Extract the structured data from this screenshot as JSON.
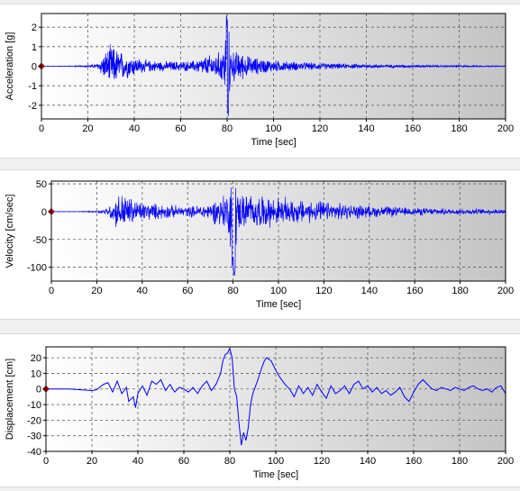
{
  "colors": {
    "signal": "#0000ff",
    "marker": "#cc0000",
    "plot_bg_left": "#ffffff",
    "plot_bg_right": "#c4c4c4",
    "grid": "#606060"
  },
  "chart_data": [
    {
      "type": "line",
      "title": "",
      "xlabel": "Time [sec]",
      "ylabel": "Acceleration [g]",
      "xlim": [
        0,
        200
      ],
      "ylim": [
        -2.7,
        2.7
      ],
      "xticks": [
        0,
        20,
        40,
        60,
        80,
        100,
        120,
        140,
        160,
        180,
        200
      ],
      "yticks": [
        -2,
        -1,
        0,
        1,
        2
      ],
      "grid": true,
      "marker": {
        "x": 0,
        "y": 0
      },
      "envelope": [
        {
          "x": 0,
          "a": 0
        },
        {
          "x": 10,
          "a": 0.01
        },
        {
          "x": 18,
          "a": 0.04
        },
        {
          "x": 24,
          "a": 0.15
        },
        {
          "x": 26,
          "a": 0.55
        },
        {
          "x": 28,
          "a": 0.9
        },
        {
          "x": 30,
          "a": 1.25
        },
        {
          "x": 33,
          "a": 0.95
        },
        {
          "x": 36,
          "a": 0.75
        },
        {
          "x": 40,
          "a": 0.55
        },
        {
          "x": 45,
          "a": 0.35
        },
        {
          "x": 50,
          "a": 0.3
        },
        {
          "x": 60,
          "a": 0.28
        },
        {
          "x": 65,
          "a": 0.3
        },
        {
          "x": 70,
          "a": 0.55
        },
        {
          "x": 75,
          "a": 0.75
        },
        {
          "x": 78,
          "a": 0.9
        },
        {
          "x": 80,
          "a": 2.7
        },
        {
          "x": 82,
          "a": 0.95
        },
        {
          "x": 86,
          "a": 0.8
        },
        {
          "x": 90,
          "a": 0.55
        },
        {
          "x": 100,
          "a": 0.35
        },
        {
          "x": 110,
          "a": 0.25
        },
        {
          "x": 130,
          "a": 0.15
        },
        {
          "x": 150,
          "a": 0.1
        },
        {
          "x": 170,
          "a": 0.06
        },
        {
          "x": 200,
          "a": 0.03
        }
      ]
    },
    {
      "type": "line",
      "title": "",
      "xlabel": "Time [sec]",
      "ylabel": "Velocity [cm/sec]",
      "xlim": [
        0,
        200
      ],
      "ylim": [
        -125,
        55
      ],
      "xticks": [
        0,
        20,
        40,
        60,
        80,
        100,
        120,
        140,
        160,
        180,
        200
      ],
      "yticks": [
        -100,
        -50,
        0,
        50
      ],
      "grid": true,
      "marker": {
        "x": 0,
        "y": 0
      },
      "envelope": [
        {
          "x": 0,
          "a": 0
        },
        {
          "x": 12,
          "a": 0.5
        },
        {
          "x": 20,
          "a": 2
        },
        {
          "x": 25,
          "a": 8
        },
        {
          "x": 28,
          "a": 30
        },
        {
          "x": 31,
          "a": 40
        },
        {
          "x": 35,
          "a": 30
        },
        {
          "x": 40,
          "a": 20
        },
        {
          "x": 50,
          "a": 15
        },
        {
          "x": 60,
          "a": 10
        },
        {
          "x": 70,
          "a": 18
        },
        {
          "x": 75,
          "a": 35
        },
        {
          "x": 78,
          "a": 45
        },
        {
          "x": 80,
          "a": 120
        },
        {
          "x": 82,
          "a": 40
        },
        {
          "x": 88,
          "a": 35
        },
        {
          "x": 100,
          "a": 28
        },
        {
          "x": 110,
          "a": 25
        },
        {
          "x": 120,
          "a": 20
        },
        {
          "x": 140,
          "a": 12
        },
        {
          "x": 160,
          "a": 8
        },
        {
          "x": 180,
          "a": 6
        },
        {
          "x": 200,
          "a": 5
        }
      ]
    },
    {
      "type": "line",
      "title": "",
      "xlabel": "Time [sec]",
      "ylabel": "Displacement [cm]",
      "xlim": [
        0,
        200
      ],
      "ylim": [
        -40,
        27
      ],
      "xticks": [
        0,
        20,
        40,
        60,
        80,
        100,
        120,
        140,
        160,
        180,
        200
      ],
      "yticks": [
        -40,
        -30,
        -20,
        -10,
        0,
        10,
        20
      ],
      "grid": true,
      "marker": {
        "x": 0,
        "y": 0
      },
      "points": [
        [
          0,
          0
        ],
        [
          10,
          0
        ],
        [
          15,
          -0.5
        ],
        [
          20,
          -1
        ],
        [
          22,
          -0.5
        ],
        [
          25,
          3
        ],
        [
          27,
          4
        ],
        [
          29,
          -2
        ],
        [
          31,
          5
        ],
        [
          33,
          -3
        ],
        [
          35,
          1
        ],
        [
          36,
          -8
        ],
        [
          38,
          -5
        ],
        [
          39,
          -12
        ],
        [
          40,
          -3
        ],
        [
          42,
          2
        ],
        [
          44,
          -4
        ],
        [
          46,
          5
        ],
        [
          48,
          3
        ],
        [
          50,
          6
        ],
        [
          52,
          -1
        ],
        [
          54,
          3
        ],
        [
          56,
          -2
        ],
        [
          58,
          1
        ],
        [
          60,
          0
        ],
        [
          62,
          -2
        ],
        [
          64,
          1
        ],
        [
          66,
          -3
        ],
        [
          68,
          2
        ],
        [
          70,
          5
        ],
        [
          72,
          -1
        ],
        [
          74,
          3
        ],
        [
          76,
          10
        ],
        [
          77,
          18
        ],
        [
          78,
          22
        ],
        [
          79,
          23
        ],
        [
          80,
          26
        ],
        [
          81,
          20
        ],
        [
          82,
          0
        ],
        [
          83,
          -5
        ],
        [
          84,
          -22
        ],
        [
          85,
          -36
        ],
        [
          86,
          -28
        ],
        [
          87,
          -33
        ],
        [
          88,
          -25
        ],
        [
          89,
          -10
        ],
        [
          90,
          -3
        ],
        [
          92,
          5
        ],
        [
          94,
          14
        ],
        [
          95,
          18
        ],
        [
          96,
          20
        ],
        [
          98,
          18
        ],
        [
          100,
          12
        ],
        [
          102,
          7
        ],
        [
          104,
          3
        ],
        [
          106,
          0
        ],
        [
          108,
          -5
        ],
        [
          110,
          2
        ],
        [
          112,
          -3
        ],
        [
          114,
          1
        ],
        [
          116,
          -4
        ],
        [
          118,
          3
        ],
        [
          120,
          -2
        ],
        [
          122,
          -6
        ],
        [
          124,
          2
        ],
        [
          126,
          -3
        ],
        [
          128,
          -1
        ],
        [
          130,
          2
        ],
        [
          132,
          -3
        ],
        [
          134,
          3
        ],
        [
          136,
          5
        ],
        [
          138,
          0
        ],
        [
          140,
          2
        ],
        [
          142,
          -2
        ],
        [
          144,
          1
        ],
        [
          146,
          -3
        ],
        [
          148,
          -1
        ],
        [
          150,
          -4
        ],
        [
          152,
          -2
        ],
        [
          154,
          1
        ],
        [
          156,
          -5
        ],
        [
          158,
          -8
        ],
        [
          160,
          -2
        ],
        [
          162,
          3
        ],
        [
          164,
          6
        ],
        [
          166,
          3
        ],
        [
          168,
          0
        ],
        [
          170,
          -1
        ],
        [
          172,
          1
        ],
        [
          174,
          0
        ],
        [
          176,
          -1
        ],
        [
          178,
          1
        ],
        [
          180,
          0
        ],
        [
          182,
          -1
        ],
        [
          184,
          1
        ],
        [
          186,
          2
        ],
        [
          188,
          0
        ],
        [
          190,
          -1
        ],
        [
          192,
          0
        ],
        [
          194,
          -2
        ],
        [
          196,
          1
        ],
        [
          198,
          2
        ],
        [
          200,
          -3
        ]
      ]
    }
  ]
}
